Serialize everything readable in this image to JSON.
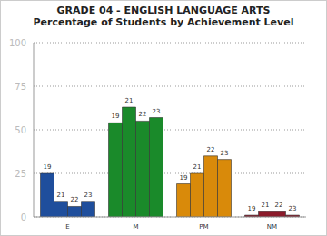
{
  "chart_data": {
    "type": "bar",
    "title": "GRADE 04 - ENGLISH LANGUAGE ARTS",
    "subtitle": "Percentage of Students by Achievement Level",
    "categories": [
      "E",
      "M",
      "PM",
      "NM"
    ],
    "series": [
      {
        "name": "19",
        "values": [
          25,
          54,
          19,
          1
        ]
      },
      {
        "name": "21",
        "values": [
          9,
          63,
          25,
          3
        ]
      },
      {
        "name": "22",
        "values": [
          6,
          55,
          35,
          3
        ]
      },
      {
        "name": "23",
        "values": [
          9,
          57,
          33,
          1
        ]
      }
    ],
    "colors": [
      "#1f4e9c",
      "#1a8a2a",
      "#d98a0a",
      "#8b1a2a"
    ],
    "ylim": [
      0,
      100
    ],
    "yticks": [
      0,
      25,
      50,
      75,
      100
    ],
    "grid": true,
    "data_labels": false
  }
}
